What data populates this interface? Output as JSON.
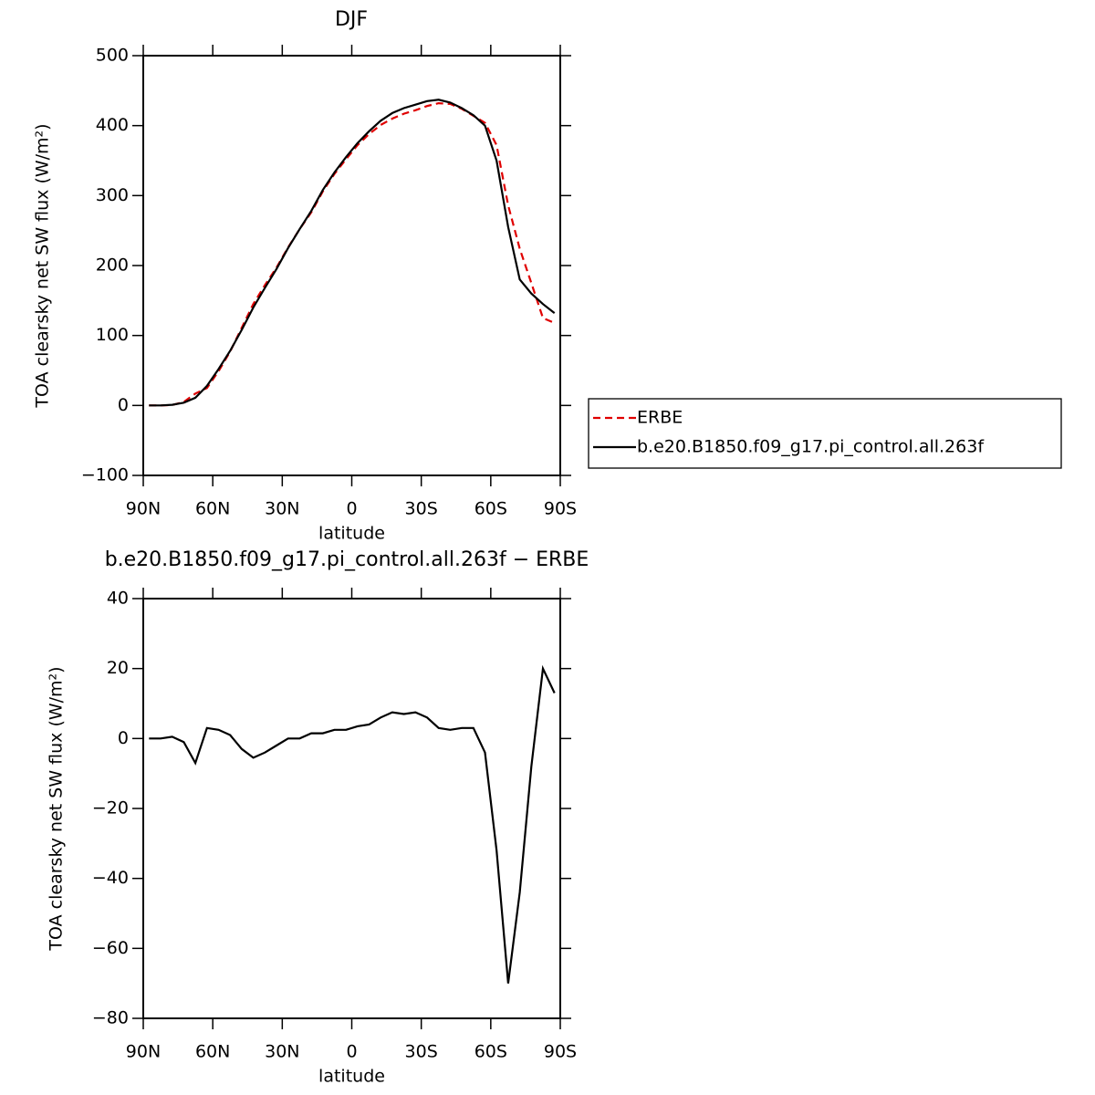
{
  "chart_data": [
    {
      "type": "line",
      "title": "DJF",
      "xlabel": "latitude",
      "ylabel": "TOA clearsky net SW flux (W/m²)",
      "x": [
        87.5,
        82.5,
        77.5,
        72.5,
        67.5,
        62.5,
        57.5,
        52.5,
        47.5,
        42.5,
        37.5,
        32.5,
        27.5,
        22.5,
        17.5,
        12.5,
        7.5,
        2.5,
        -2.5,
        -7.5,
        -12.5,
        -17.5,
        -22.5,
        -27.5,
        -32.5,
        -37.5,
        -42.5,
        -47.5,
        -52.5,
        -57.5,
        -62.5,
        -67.5,
        -72.5,
        -77.5,
        -82.5,
        -87.5
      ],
      "series": [
        {
          "name": "ERBE",
          "color": "#e00000",
          "style": "dashed",
          "values": [
            0,
            0,
            0.5,
            5,
            17,
            25,
            49,
            77,
            111,
            145,
            172,
            197,
            226,
            252,
            276,
            306,
            331,
            352,
            372,
            388,
            401,
            410,
            417,
            422,
            428,
            432,
            431,
            424,
            414,
            404,
            372,
            286,
            224,
            175,
            125,
            118
          ]
        },
        {
          "name": "b.e20.B1850.f09_g17.pi_control.all.263f",
          "color": "#000000",
          "style": "solid",
          "values": [
            0,
            0,
            1,
            4,
            11,
            28,
            52,
            78,
            108,
            140,
            168,
            195,
            225,
            252,
            278,
            308,
            333,
            355,
            375,
            392,
            407,
            418,
            425,
            430,
            435,
            437,
            433,
            425,
            415,
            400,
            350,
            255,
            180,
            160,
            145,
            132
          ]
        }
      ],
      "xlim": [
        90,
        -90
      ],
      "ylim": [
        -100,
        500
      ],
      "xticks": [
        {
          "value": 90,
          "label": "90N"
        },
        {
          "value": 60,
          "label": "60N"
        },
        {
          "value": 30,
          "label": "30N"
        },
        0,
        {
          "value": -30,
          "label": "30S"
        },
        {
          "value": -60,
          "label": "60S"
        },
        {
          "value": -90,
          "label": "90S"
        }
      ],
      "yticks": [
        {
          "value": -100,
          "label": "−100"
        },
        0,
        100,
        200,
        300,
        400,
        500
      ],
      "legend": "outside-right"
    },
    {
      "type": "line",
      "title": "b.e20.B1850.f09_g17.pi_control.all.263f − ERBE",
      "xlabel": "latitude",
      "ylabel": "TOA clearsky net SW flux (W/m²)",
      "x": [
        87.5,
        82.5,
        77.5,
        72.5,
        67.5,
        62.5,
        57.5,
        52.5,
        47.5,
        42.5,
        37.5,
        32.5,
        27.5,
        22.5,
        17.5,
        12.5,
        7.5,
        2.5,
        -2.5,
        -7.5,
        -12.5,
        -17.5,
        -22.5,
        -27.5,
        -32.5,
        -37.5,
        -42.5,
        -47.5,
        -52.5,
        -57.5,
        -62.5,
        -67.5,
        -72.5,
        -77.5,
        -82.5,
        -87.5
      ],
      "series": [
        {
          "color": "#000000",
          "style": "solid",
          "values": [
            0,
            0,
            0.5,
            -1,
            -7,
            3,
            2.5,
            1,
            -3,
            -5.5,
            -4,
            -2,
            0,
            0,
            1.5,
            1.5,
            2.5,
            2.5,
            3.5,
            4,
            6,
            7.5,
            7,
            7.5,
            6,
            3,
            2.5,
            3,
            3,
            -4,
            -32,
            -70,
            -44,
            -8,
            20,
            13
          ]
        }
      ],
      "xlim": [
        90,
        -90
      ],
      "ylim": [
        -80,
        40
      ],
      "xticks": [
        {
          "value": 90,
          "label": "90N"
        },
        {
          "value": 60,
          "label": "60N"
        },
        {
          "value": 30,
          "label": "30N"
        },
        0,
        {
          "value": -30,
          "label": "30S"
        },
        {
          "value": -60,
          "label": "60S"
        },
        {
          "value": -90,
          "label": "90S"
        }
      ],
      "yticks": [
        {
          "value": -80,
          "label": "−80"
        },
        {
          "value": -60,
          "label": "−60"
        },
        {
          "value": -40,
          "label": "−40"
        },
        {
          "value": -20,
          "label": "−20"
        },
        0,
        20,
        40
      ]
    }
  ]
}
